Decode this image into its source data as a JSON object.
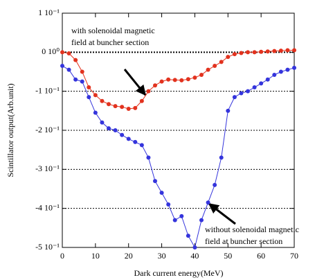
{
  "chart_data": {
    "type": "line",
    "x_label": "Dark current energy(MeV)",
    "y_label": "Scintillator output(Arb.unit)",
    "x": [
      0,
      2,
      4,
      6,
      8,
      10,
      12,
      14,
      16,
      18,
      20,
      22,
      24,
      26,
      28,
      30,
      32,
      34,
      36,
      38,
      40,
      42,
      44,
      46,
      48,
      50,
      52,
      54,
      56,
      58,
      60,
      62,
      64,
      66,
      68,
      70
    ],
    "series": [
      {
        "color": "#e2321e",
        "values": [
          0,
          -0.003,
          -0.02,
          -0.05,
          -0.09,
          -0.11,
          -0.125,
          -0.133,
          -0.138,
          -0.14,
          -0.145,
          -0.143,
          -0.125,
          -0.1,
          -0.085,
          -0.075,
          -0.07,
          -0.071,
          -0.072,
          -0.069,
          -0.065,
          -0.058,
          -0.045,
          -0.035,
          -0.025,
          -0.012,
          -0.005,
          -0.002,
          0,
          0,
          0.001,
          0.002,
          0.003,
          0.004,
          0.005,
          0.005
        ]
      },
      {
        "color": "#3434dc",
        "values": [
          -0.035,
          -0.045,
          -0.07,
          -0.075,
          -0.115,
          -0.155,
          -0.18,
          -0.195,
          -0.2,
          -0.212,
          -0.222,
          -0.23,
          -0.238,
          -0.27,
          -0.33,
          -0.36,
          -0.39,
          -0.43,
          -0.42,
          -0.47,
          -0.5,
          -0.43,
          -0.385,
          -0.34,
          -0.27,
          -0.15,
          -0.115,
          -0.105,
          -0.1,
          -0.09,
          -0.08,
          -0.07,
          -0.058,
          -0.05,
          -0.045,
          -0.04
        ]
      }
    ],
    "xlim": [
      0,
      70
    ],
    "xticks": [
      0,
      10,
      20,
      30,
      40,
      50,
      60,
      70
    ],
    "ylim": [
      -0.5,
      0.1
    ],
    "yticks": [
      {
        "value": 0.1,
        "label": "1 10⁻¹"
      },
      {
        "value": 0,
        "label": "0 10⁰"
      },
      {
        "value": -0.1,
        "label": "-1 10⁻¹"
      },
      {
        "value": -0.2,
        "label": "-2 10⁻¹"
      },
      {
        "value": -0.3,
        "label": "-3 10⁻¹"
      },
      {
        "value": -0.4,
        "label": "-4 10⁻¹"
      },
      {
        "value": -0.5,
        "label": "-5 10⁻¹"
      }
    ],
    "grid": true,
    "annotations": [
      [
        "with solenoidal magnetic",
        "field at buncher section"
      ],
      [
        "without solenoidal magnetic",
        "field at buncher section"
      ]
    ]
  }
}
